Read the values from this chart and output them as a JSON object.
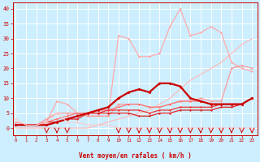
{
  "background_color": "#cceeff",
  "grid_color": "#ffffff",
  "xlabel": "Vent moyen/en rafales ( km/h )",
  "xlabel_color": "#cc0000",
  "tick_color": "#cc0000",
  "yticks": [
    0,
    5,
    10,
    15,
    20,
    25,
    30,
    35,
    40
  ],
  "xticks": [
    0,
    1,
    2,
    3,
    4,
    5,
    6,
    7,
    8,
    9,
    10,
    11,
    12,
    13,
    14,
    15,
    16,
    17,
    18,
    19,
    20,
    21,
    22,
    23
  ],
  "xlim": [
    -0.3,
    23.5
  ],
  "ylim": [
    -2.5,
    42
  ],
  "lines": [
    {
      "x": [
        0,
        1,
        2,
        3,
        4,
        5,
        6,
        7,
        8,
        9,
        10,
        11,
        12,
        13,
        14,
        15,
        16,
        17,
        18,
        19,
        20,
        21,
        22,
        23
      ],
      "y": [
        0,
        0,
        0,
        0,
        0,
        0,
        0,
        0,
        1,
        2,
        3,
        4,
        5,
        6,
        8,
        10,
        13,
        16,
        18,
        20,
        22,
        25,
        28,
        30
      ],
      "color": "#ffbbbb",
      "lw": 0.9,
      "marker": null
    },
    {
      "x": [
        0,
        1,
        2,
        3,
        4,
        5,
        6,
        7,
        8,
        9,
        10,
        11,
        12,
        13,
        14,
        15,
        16,
        17,
        18,
        19,
        20,
        21,
        22,
        23
      ],
      "y": [
        1,
        1,
        1,
        2,
        9,
        8,
        5,
        4,
        4,
        4,
        31,
        30,
        24,
        24,
        25,
        34,
        40,
        31,
        32,
        34,
        32,
        22,
        20,
        19
      ],
      "color": "#ffaaaa",
      "lw": 0.9,
      "marker": "D",
      "ms": 1.5
    },
    {
      "x": [
        0,
        1,
        2,
        3,
        4,
        5,
        6,
        7,
        8,
        9,
        10,
        11,
        12,
        13,
        14,
        15,
        16,
        17,
        18,
        19,
        20,
        21,
        22,
        23
      ],
      "y": [
        2,
        1,
        1,
        3,
        5,
        5,
        5,
        4,
        4,
        4,
        8,
        8,
        8,
        7,
        7,
        8,
        9,
        9,
        10,
        9,
        9,
        20,
        21,
        20
      ],
      "color": "#ff9999",
      "lw": 0.9,
      "marker": "D",
      "ms": 1.5
    },
    {
      "x": [
        0,
        1,
        2,
        3,
        4,
        5,
        6,
        7,
        8,
        9,
        10,
        11,
        12,
        13,
        14,
        15,
        16,
        17,
        18,
        19,
        20,
        21,
        22,
        23
      ],
      "y": [
        1,
        1,
        1,
        2,
        3,
        4,
        5,
        5,
        6,
        6,
        7,
        8,
        8,
        7,
        7,
        8,
        9,
        9,
        9,
        8,
        8,
        8,
        8,
        10
      ],
      "color": "#ff7777",
      "lw": 0.9,
      "marker": "D",
      "ms": 1.5
    },
    {
      "x": [
        0,
        1,
        2,
        3,
        4,
        5,
        6,
        7,
        8,
        9,
        10,
        11,
        12,
        13,
        14,
        15,
        16,
        17,
        18,
        19,
        20,
        21,
        22,
        23
      ],
      "y": [
        1,
        1,
        1,
        2,
        2,
        3,
        4,
        5,
        5,
        6,
        6,
        6,
        6,
        5,
        6,
        6,
        7,
        7,
        7,
        7,
        8,
        8,
        8,
        10
      ],
      "color": "#ee3333",
      "lw": 0.9,
      "marker": "D",
      "ms": 1.5
    },
    {
      "x": [
        0,
        1,
        2,
        3,
        4,
        5,
        6,
        7,
        8,
        9,
        10,
        11,
        12,
        13,
        14,
        15,
        16,
        17,
        18,
        19,
        20,
        21,
        22,
        23
      ],
      "y": [
        1,
        1,
        1,
        1,
        2,
        3,
        3,
        5,
        5,
        5,
        5,
        5,
        4,
        4,
        5,
        5,
        6,
        6,
        6,
        6,
        7,
        7,
        8,
        10
      ],
      "color": "#dd2222",
      "lw": 0.9,
      "marker": "D",
      "ms": 1.5
    },
    {
      "x": [
        0,
        1,
        2,
        3,
        4,
        5,
        6,
        7,
        8,
        9,
        10,
        11,
        12,
        13,
        14,
        15,
        16,
        17,
        18,
        19,
        20,
        21,
        22,
        23
      ],
      "y": [
        1,
        1,
        1,
        1,
        2,
        3,
        4,
        5,
        6,
        7,
        10,
        12,
        13,
        12,
        15,
        15,
        14,
        10,
        9,
        8,
        8,
        8,
        8,
        10
      ],
      "color": "#cc0000",
      "lw": 1.6,
      "marker": "D",
      "ms": 2.0
    },
    {
      "x": [
        0,
        1,
        2,
        3,
        4,
        5,
        6,
        7,
        8,
        9,
        10,
        11,
        12,
        13,
        14,
        15,
        16,
        17,
        18,
        19,
        20,
        21,
        22,
        23
      ],
      "y": [
        3,
        1,
        1,
        2,
        5,
        2,
        2,
        1,
        1,
        1,
        0,
        0,
        0,
        0,
        0,
        0,
        0,
        0,
        0,
        0,
        0,
        0,
        0,
        0
      ],
      "color": "#ffcccc",
      "lw": 0.8,
      "marker": "D",
      "ms": 1.5
    }
  ],
  "arrows_x": [
    3,
    4,
    5,
    10,
    11,
    12,
    13,
    14,
    15,
    16,
    17,
    18,
    19,
    20,
    21,
    22,
    23
  ],
  "arrow_color": "#cc0000"
}
